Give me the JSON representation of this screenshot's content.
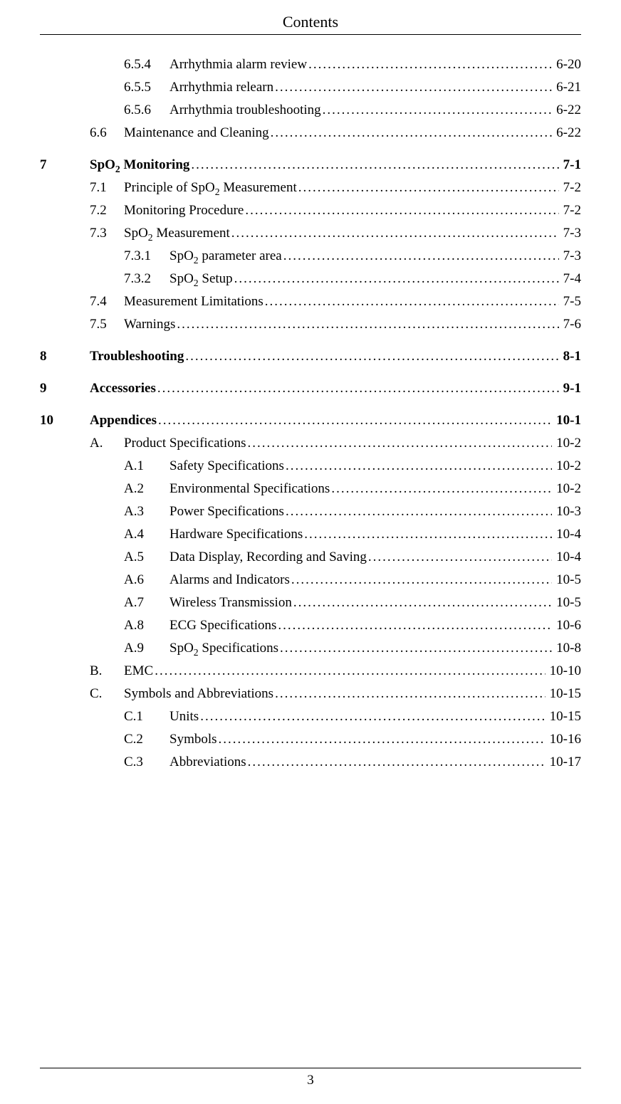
{
  "header": "Contents",
  "page_number": "3",
  "colors": {
    "background": "#ffffff",
    "text": "#000000",
    "rule": "#000000"
  },
  "typography": {
    "family": "Times New Roman",
    "body_size_pt": 14,
    "header_size_pt": 16
  },
  "entries": [
    {
      "level": 3,
      "bold": false,
      "chap": "",
      "num": "6.5.4",
      "title": "Arrhythmia alarm review",
      "page": "6-20",
      "sub": false,
      "gap": false
    },
    {
      "level": 3,
      "bold": false,
      "chap": "",
      "num": "6.5.5",
      "title": "Arrhythmia relearn",
      "page": "6-21",
      "sub": false,
      "gap": false
    },
    {
      "level": 3,
      "bold": false,
      "chap": "",
      "num": "6.5.6",
      "title": "Arrhythmia troubleshooting",
      "page": "6-22",
      "sub": false,
      "gap": false
    },
    {
      "level": 2,
      "bold": false,
      "chap": "",
      "num": "6.6",
      "title": "Maintenance and Cleaning",
      "page": "6-22",
      "sub": false,
      "gap": false
    },
    {
      "level": 1,
      "bold": true,
      "chap": "7",
      "num": "",
      "title": "SpO|2| Monitoring",
      "page": "7-1",
      "sub": true,
      "gap": true
    },
    {
      "level": 2,
      "bold": false,
      "chap": "",
      "num": "7.1",
      "title": "Principle of SpO|2| Measurement",
      "page": "7-2",
      "sub": true,
      "gap": false
    },
    {
      "level": 2,
      "bold": false,
      "chap": "",
      "num": "7.2",
      "title": "Monitoring Procedure",
      "page": "7-2",
      "sub": false,
      "gap": false
    },
    {
      "level": 2,
      "bold": false,
      "chap": "",
      "num": "7.3",
      "title": "SpO|2| Measurement",
      "page": "7-3",
      "sub": true,
      "gap": false
    },
    {
      "level": 3,
      "bold": false,
      "chap": "",
      "num": "7.3.1",
      "title": "SpO|2| parameter area",
      "page": "7-3",
      "sub": true,
      "gap": false
    },
    {
      "level": 3,
      "bold": false,
      "chap": "",
      "num": "7.3.2",
      "title": "SpO|2| Setup",
      "page": "7-4",
      "sub": true,
      "gap": false
    },
    {
      "level": 2,
      "bold": false,
      "chap": "",
      "num": "7.4",
      "title": "Measurement Limitations",
      "page": "7-5",
      "sub": false,
      "gap": false
    },
    {
      "level": 2,
      "bold": false,
      "chap": "",
      "num": "7.5",
      "title": "Warnings",
      "page": "7-6",
      "sub": false,
      "gap": false
    },
    {
      "level": 1,
      "bold": true,
      "chap": "8",
      "num": "",
      "title": "Troubleshooting",
      "page": "8-1",
      "sub": false,
      "gap": true
    },
    {
      "level": 1,
      "bold": true,
      "chap": "9",
      "num": "",
      "title": "Accessories",
      "page": "9-1",
      "sub": false,
      "gap": true
    },
    {
      "level": 1,
      "bold": true,
      "chap": "10",
      "num": "",
      "title": "Appendices",
      "page": "10-1",
      "sub": false,
      "gap": true
    },
    {
      "level": 2,
      "bold": false,
      "chap": "",
      "num": "A.",
      "title": "Product Specifications",
      "page": "10-2",
      "sub": false,
      "gap": false
    },
    {
      "level": 3,
      "bold": false,
      "chap": "",
      "num": "A.1",
      "title": "Safety Specifications",
      "page": "10-2",
      "sub": false,
      "gap": false
    },
    {
      "level": 3,
      "bold": false,
      "chap": "",
      "num": "A.2",
      "title": "Environmental Specifications",
      "page": "10-2",
      "sub": false,
      "gap": false
    },
    {
      "level": 3,
      "bold": false,
      "chap": "",
      "num": "A.3",
      "title": "Power Specifications",
      "page": "10-3",
      "sub": false,
      "gap": false
    },
    {
      "level": 3,
      "bold": false,
      "chap": "",
      "num": "A.4",
      "title": "Hardware Specifications",
      "page": "10-4",
      "sub": false,
      "gap": false
    },
    {
      "level": 3,
      "bold": false,
      "chap": "",
      "num": "A.5",
      "title": "Data Display, Recording and Saving",
      "page": "10-4",
      "sub": false,
      "gap": false
    },
    {
      "level": 3,
      "bold": false,
      "chap": "",
      "num": "A.6",
      "title": "Alarms and Indicators",
      "page": "10-5",
      "sub": false,
      "gap": false
    },
    {
      "level": 3,
      "bold": false,
      "chap": "",
      "num": "A.7",
      "title": "Wireless Transmission",
      "page": "10-5",
      "sub": false,
      "gap": false
    },
    {
      "level": 3,
      "bold": false,
      "chap": "",
      "num": "A.8",
      "title": "ECG Specifications",
      "page": "10-6",
      "sub": false,
      "gap": false
    },
    {
      "level": 3,
      "bold": false,
      "chap": "",
      "num": "A.9",
      "title": "SpO|2| Specifications",
      "page": "10-8",
      "sub": true,
      "gap": false
    },
    {
      "level": 2,
      "bold": false,
      "chap": "",
      "num": "B.",
      "title": "EMC",
      "page": "10-10",
      "sub": false,
      "gap": false
    },
    {
      "level": 2,
      "bold": false,
      "chap": "",
      "num": "C.",
      "title": "Symbols and Abbreviations",
      "page": "10-15",
      "sub": false,
      "gap": false
    },
    {
      "level": 3,
      "bold": false,
      "chap": "",
      "num": "C.1",
      "title": "Units",
      "page": "10-15",
      "sub": false,
      "gap": false
    },
    {
      "level": 3,
      "bold": false,
      "chap": "",
      "num": "C.2",
      "title": "Symbols",
      "page": "10-16",
      "sub": false,
      "gap": false
    },
    {
      "level": 3,
      "bold": false,
      "chap": "",
      "num": "C.3",
      "title": "Abbreviations",
      "page": "10-17",
      "sub": false,
      "gap": false
    }
  ]
}
